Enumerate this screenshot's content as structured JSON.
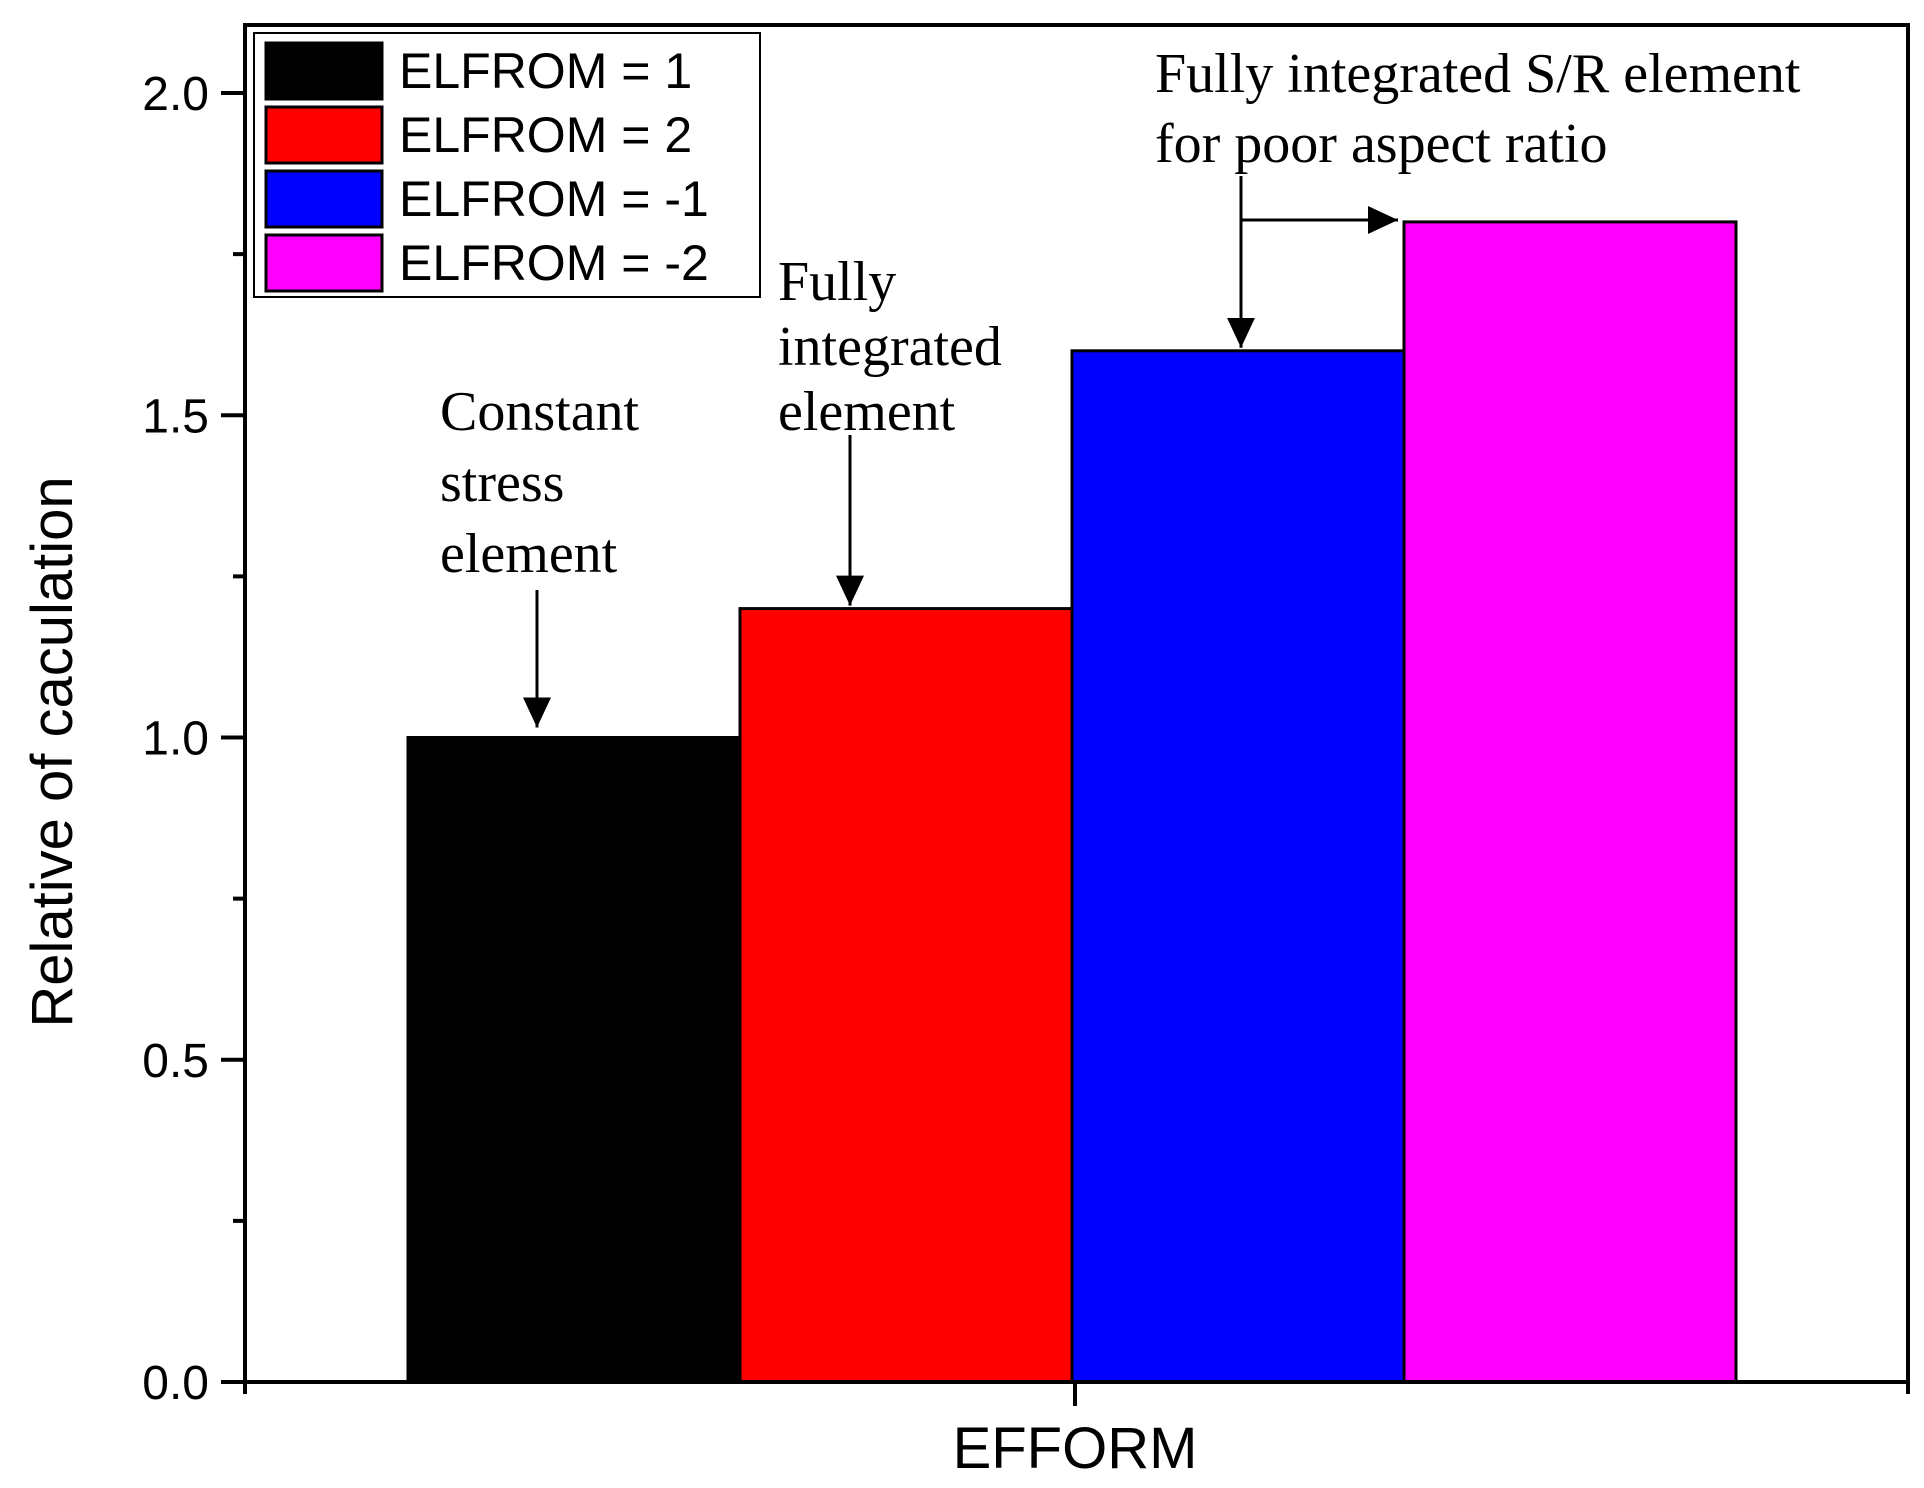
{
  "chart_data": {
    "type": "bar",
    "title": "",
    "xlabel": "EFFORM",
    "ylabel": "Relative of caculation",
    "ylim": [
      0,
      2.1
    ],
    "yticks": [
      0.0,
      0.5,
      1.0,
      1.5,
      2.0
    ],
    "ytick_labels": [
      "0.0",
      "0.5",
      "1.0",
      "1.5",
      "2.0"
    ],
    "grid": false,
    "legend_position": "top-left",
    "series": [
      {
        "name": "ELFROM = 1",
        "value": 1.0,
        "color": "#000000"
      },
      {
        "name": "ELFROM = 2",
        "value": 1.2,
        "color": "#ff0000"
      },
      {
        "name": "ELFROM = -1",
        "value": 1.6,
        "color": "#0000ff"
      },
      {
        "name": "ELFROM = -2",
        "value": 1.8,
        "color": "#ff00ff"
      }
    ],
    "annotations": [
      {
        "lines": [
          "Constant",
          "stress",
          "element"
        ],
        "target_series": 0
      },
      {
        "lines": [
          "Fully",
          "integrated",
          "element"
        ],
        "target_series": 1
      },
      {
        "lines": [
          "Fully integrated S/R element",
          "for poor aspect ratio"
        ],
        "target_series": 2
      }
    ]
  }
}
